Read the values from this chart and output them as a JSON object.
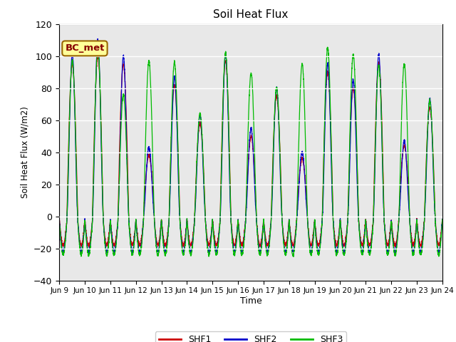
{
  "title": "Soil Heat Flux",
  "ylabel": "Soil Heat Flux (W/m2)",
  "xlabel": "Time",
  "ylim": [
    -40,
    120
  ],
  "xlim_days": 15,
  "background_color": "#e8e8e8",
  "figure_background": "#ffffff",
  "grid_color": "white",
  "shf1_color": "#cc0000",
  "shf2_color": "#0000cc",
  "shf3_color": "#00bb00",
  "legend_labels": [
    "SHF1",
    "SHF2",
    "SHF3"
  ],
  "annotation_text": "BC_met",
  "annotation_bbox_facecolor": "#ffff99",
  "annotation_bbox_edgecolor": "#996600",
  "x_tick_labels": [
    "Jun 9",
    "Jun 10",
    "Jun 11",
    "Jun 12",
    "Jun 13",
    "Jun 14",
    "Jun 15",
    "Jun 16",
    "Jun 17",
    "Jun 18",
    "Jun 19",
    "Jun 20",
    "Jun 21",
    "Jun 22",
    "Jun 23",
    "Jun 24"
  ],
  "shf3_peaks": [
    97,
    105,
    76,
    97,
    96,
    64,
    102,
    89,
    80,
    95,
    105,
    101,
    94,
    95,
    72
  ],
  "shf2_peaks": [
    101,
    110,
    100,
    43,
    87,
    63,
    101,
    55,
    80,
    40,
    95,
    85,
    101,
    47,
    73
  ],
  "shf1_peaks": [
    95,
    100,
    95,
    38,
    82,
    58,
    97,
    50,
    75,
    36,
    90,
    80,
    96,
    44,
    68
  ],
  "night_min": -25,
  "night_min_shf1": -18,
  "ppd": 288
}
